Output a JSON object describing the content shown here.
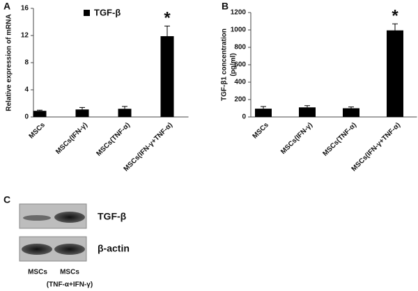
{
  "chart_data": [
    {
      "type": "bar",
      "panel": "A",
      "y_label": [
        "Relative expression of mRNA"
      ],
      "categories": [
        "MSCs",
        "MSCs(IFN-γ)",
        "MSCs(TNF-α)",
        "MSCs(IFN-γ+TNF-α)"
      ],
      "values": [
        0.9,
        1.1,
        1.2,
        11.9
      ],
      "errors": [
        0.1,
        0.3,
        0.35,
        1.5
      ],
      "color": "#000000",
      "legend": "TGF-β",
      "annotation": "*",
      "ylim": [
        0,
        16
      ],
      "yticks": [
        0,
        4,
        8,
        12,
        16
      ]
    },
    {
      "type": "bar",
      "panel": "B",
      "y_label": [
        "TGF-β1 concentration",
        "(pg/ml)"
      ],
      "categories": [
        "MSCs",
        "MSCs(IFN-γ)",
        "MSCs(TNF-α)",
        "MSCs(IFN-γ+TNF-α)"
      ],
      "values": [
        95,
        110,
        100,
        995
      ],
      "errors": [
        25,
        20,
        15,
        75
      ],
      "color": "#000000",
      "annotation": "*",
      "ylim": [
        0,
        1200
      ],
      "yticks": [
        0,
        200,
        400,
        600,
        800,
        1000,
        1200
      ]
    }
  ],
  "blot": {
    "panel": "C",
    "rows": [
      "TGF-β",
      "β-actin"
    ],
    "lanes": [
      [
        "MSCs"
      ],
      [
        "MSCs",
        "(TNF-α+IFN-γ)"
      ]
    ]
  }
}
